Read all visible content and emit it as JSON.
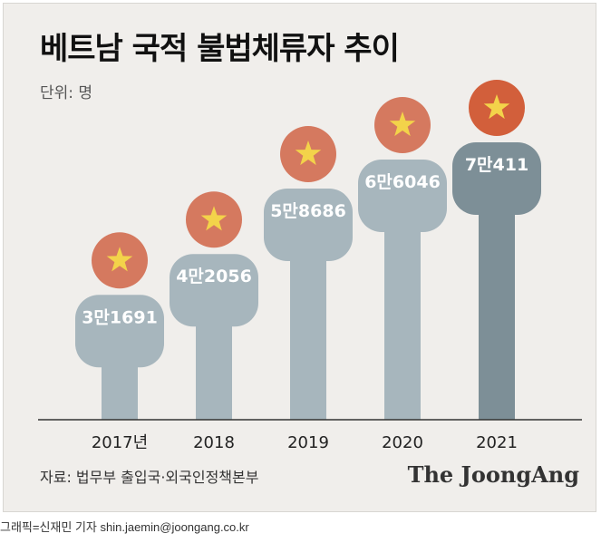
{
  "header": {
    "title": "베트남 국적 불법체류자 추이",
    "unit": "단위: 명"
  },
  "footer": {
    "source": "자료: 법무부 출입국·외국인정책본부",
    "brand": "The JoongAng",
    "credit": "그래픽=신재민 기자 shin.jaemin@joongang.co.kr"
  },
  "colors": {
    "figure": "#a7b6bd",
    "figure_highlight": "#7d8f97",
    "circle": "#d5795f",
    "circle_highlight": "#d25f3b",
    "star": "#f3d34a",
    "axis": "#333333"
  },
  "chart_data": {
    "type": "bar",
    "categories": [
      "2017년",
      "2018",
      "2019",
      "2020",
      "2021"
    ],
    "values": [
      31691,
      42056,
      58686,
      66046,
      70411
    ],
    "value_labels": [
      "3만1691",
      "4만2056",
      "5만8686",
      "6만6046",
      "7만411"
    ],
    "title": "베트남 국적 불법체류자 추이",
    "unit_label": "단위: 명",
    "highlight_index": 4,
    "ylim": [
      0,
      70411
    ]
  }
}
